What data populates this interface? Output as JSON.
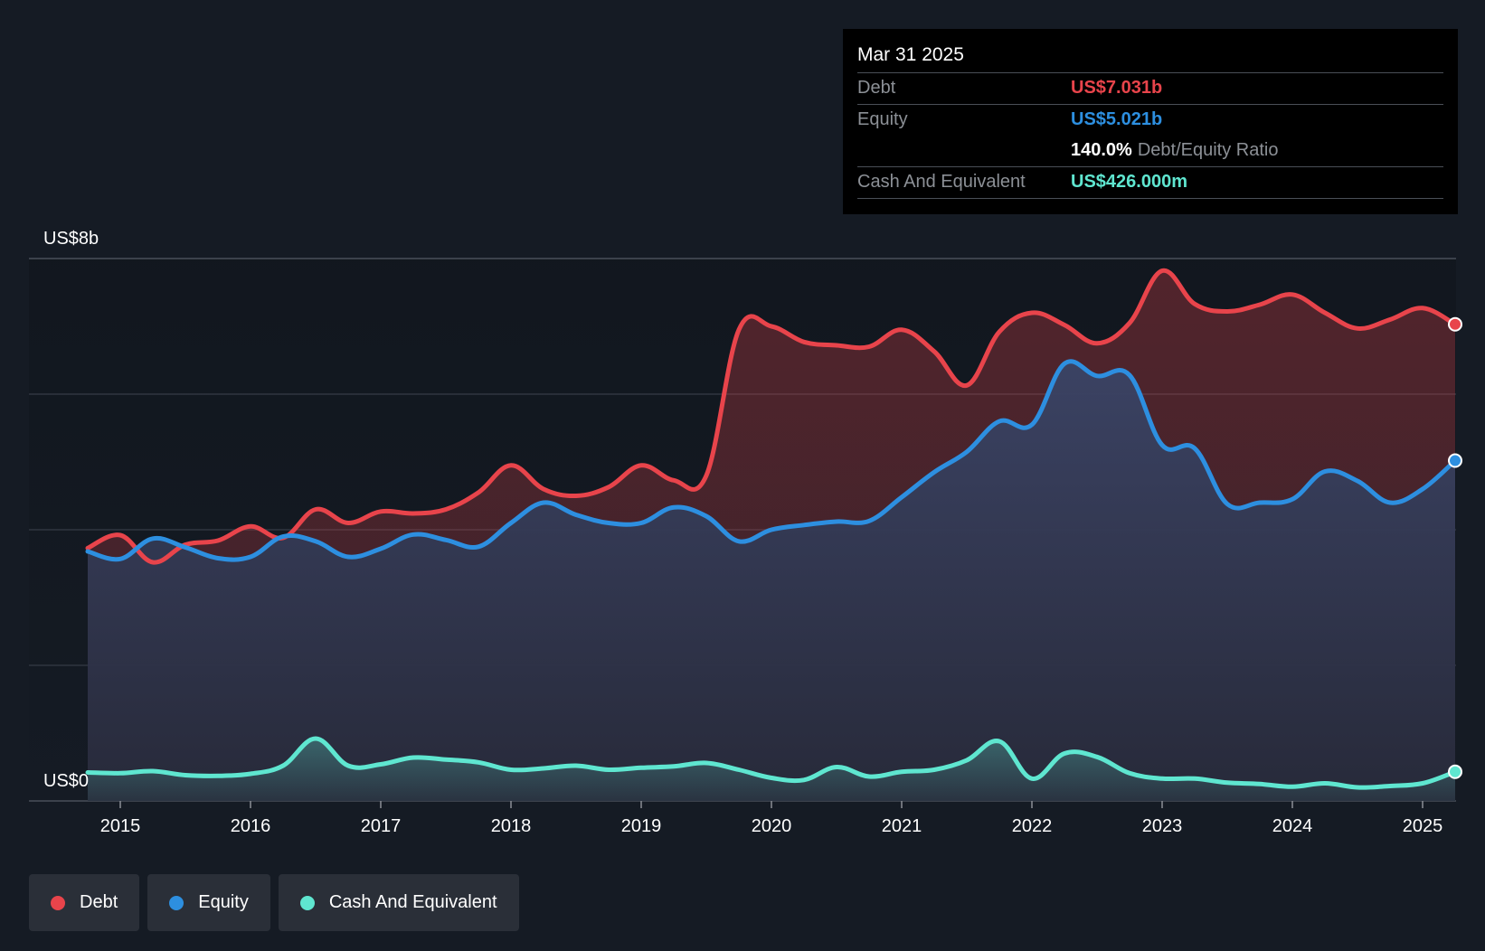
{
  "colors": {
    "debt": "#e8444b",
    "equity": "#2d8fe0",
    "cash": "#5fe6d0",
    "background": "#151b24"
  },
  "tooltip": {
    "date": "Mar 31 2025",
    "debt_label": "Debt",
    "debt_value": "US$7.031b",
    "equity_label": "Equity",
    "equity_value": "US$5.021b",
    "ratio_value": "140.0%",
    "ratio_label": "Debt/Equity Ratio",
    "cash_label": "Cash And Equivalent",
    "cash_value": "US$426.000m"
  },
  "legend": [
    {
      "label": "Debt",
      "color": "#e8444b"
    },
    {
      "label": "Equity",
      "color": "#2d8fe0"
    },
    {
      "label": "Cash And Equivalent",
      "color": "#5fe6d0"
    }
  ],
  "chart_data": {
    "type": "area",
    "title": "",
    "xlabel": "",
    "ylabel": "",
    "y_top_label": "US$8b",
    "y_bottom_label": "US$0",
    "ylim": [
      0,
      8
    ],
    "xlim": [
      2014.2,
      2025.25
    ],
    "x_ticks": [
      "2015",
      "2016",
      "2017",
      "2018",
      "2019",
      "2020",
      "2021",
      "2022",
      "2023",
      "2024",
      "2025"
    ],
    "grid": true,
    "series": [
      {
        "name": "Debt",
        "color": "#e8444b",
        "points": [
          [
            2014.75,
            3.73
          ],
          [
            2015.0,
            3.92
          ],
          [
            2015.25,
            3.52
          ],
          [
            2015.5,
            3.78
          ],
          [
            2015.75,
            3.84
          ],
          [
            2016.0,
            4.05
          ],
          [
            2016.25,
            3.88
          ],
          [
            2016.5,
            4.3
          ],
          [
            2016.75,
            4.1
          ],
          [
            2017.0,
            4.27
          ],
          [
            2017.25,
            4.24
          ],
          [
            2017.5,
            4.3
          ],
          [
            2017.75,
            4.55
          ],
          [
            2018.0,
            4.95
          ],
          [
            2018.25,
            4.6
          ],
          [
            2018.5,
            4.5
          ],
          [
            2018.75,
            4.63
          ],
          [
            2019.0,
            4.95
          ],
          [
            2019.25,
            4.73
          ],
          [
            2019.5,
            4.8
          ],
          [
            2019.75,
            6.95
          ],
          [
            2020.0,
            7.0
          ],
          [
            2020.25,
            6.77
          ],
          [
            2020.5,
            6.72
          ],
          [
            2020.75,
            6.7
          ],
          [
            2021.0,
            6.95
          ],
          [
            2021.25,
            6.63
          ],
          [
            2021.5,
            6.13
          ],
          [
            2021.75,
            6.92
          ],
          [
            2022.0,
            7.2
          ],
          [
            2022.25,
            7.02
          ],
          [
            2022.5,
            6.75
          ],
          [
            2022.75,
            7.05
          ],
          [
            2023.0,
            7.82
          ],
          [
            2023.25,
            7.33
          ],
          [
            2023.5,
            7.22
          ],
          [
            2023.75,
            7.32
          ],
          [
            2024.0,
            7.47
          ],
          [
            2024.25,
            7.2
          ],
          [
            2024.5,
            6.97
          ],
          [
            2024.75,
            7.1
          ],
          [
            2025.0,
            7.27
          ],
          [
            2025.25,
            7.03
          ]
        ]
      },
      {
        "name": "Equity",
        "color": "#2d8fe0",
        "points": [
          [
            2014.75,
            3.68
          ],
          [
            2015.0,
            3.57
          ],
          [
            2015.25,
            3.87
          ],
          [
            2015.5,
            3.74
          ],
          [
            2015.75,
            3.58
          ],
          [
            2016.0,
            3.6
          ],
          [
            2016.25,
            3.9
          ],
          [
            2016.5,
            3.83
          ],
          [
            2016.75,
            3.6
          ],
          [
            2017.0,
            3.72
          ],
          [
            2017.25,
            3.93
          ],
          [
            2017.5,
            3.85
          ],
          [
            2017.75,
            3.75
          ],
          [
            2018.0,
            4.1
          ],
          [
            2018.25,
            4.4
          ],
          [
            2018.5,
            4.22
          ],
          [
            2018.75,
            4.1
          ],
          [
            2019.0,
            4.1
          ],
          [
            2019.25,
            4.33
          ],
          [
            2019.5,
            4.2
          ],
          [
            2019.75,
            3.83
          ],
          [
            2020.0,
            4.0
          ],
          [
            2020.25,
            4.07
          ],
          [
            2020.5,
            4.12
          ],
          [
            2020.75,
            4.13
          ],
          [
            2021.0,
            4.48
          ],
          [
            2021.25,
            4.85
          ],
          [
            2021.5,
            5.15
          ],
          [
            2021.75,
            5.6
          ],
          [
            2022.0,
            5.55
          ],
          [
            2022.25,
            6.45
          ],
          [
            2022.5,
            6.27
          ],
          [
            2022.75,
            6.28
          ],
          [
            2023.0,
            5.25
          ],
          [
            2023.25,
            5.2
          ],
          [
            2023.5,
            4.38
          ],
          [
            2023.75,
            4.4
          ],
          [
            2024.0,
            4.45
          ],
          [
            2024.25,
            4.86
          ],
          [
            2024.5,
            4.72
          ],
          [
            2024.75,
            4.4
          ],
          [
            2025.0,
            4.6
          ],
          [
            2025.25,
            5.02
          ]
        ]
      },
      {
        "name": "Cash And Equivalent",
        "color": "#5fe6d0",
        "points": [
          [
            2014.75,
            0.42
          ],
          [
            2015.0,
            0.41
          ],
          [
            2015.25,
            0.44
          ],
          [
            2015.5,
            0.38
          ],
          [
            2015.75,
            0.37
          ],
          [
            2016.0,
            0.4
          ],
          [
            2016.25,
            0.52
          ],
          [
            2016.5,
            0.92
          ],
          [
            2016.75,
            0.52
          ],
          [
            2017.0,
            0.54
          ],
          [
            2017.25,
            0.64
          ],
          [
            2017.5,
            0.61
          ],
          [
            2017.75,
            0.57
          ],
          [
            2018.0,
            0.46
          ],
          [
            2018.25,
            0.48
          ],
          [
            2018.5,
            0.52
          ],
          [
            2018.75,
            0.46
          ],
          [
            2019.0,
            0.49
          ],
          [
            2019.25,
            0.51
          ],
          [
            2019.5,
            0.56
          ],
          [
            2019.75,
            0.46
          ],
          [
            2020.0,
            0.34
          ],
          [
            2020.25,
            0.31
          ],
          [
            2020.5,
            0.5
          ],
          [
            2020.75,
            0.36
          ],
          [
            2021.0,
            0.43
          ],
          [
            2021.25,
            0.46
          ],
          [
            2021.5,
            0.6
          ],
          [
            2021.75,
            0.88
          ],
          [
            2022.0,
            0.33
          ],
          [
            2022.25,
            0.7
          ],
          [
            2022.5,
            0.65
          ],
          [
            2022.75,
            0.41
          ],
          [
            2023.0,
            0.33
          ],
          [
            2023.25,
            0.33
          ],
          [
            2023.5,
            0.27
          ],
          [
            2023.75,
            0.25
          ],
          [
            2024.0,
            0.21
          ],
          [
            2024.25,
            0.26
          ],
          [
            2024.5,
            0.2
          ],
          [
            2024.75,
            0.22
          ],
          [
            2025.0,
            0.26
          ],
          [
            2025.25,
            0.43
          ]
        ]
      }
    ]
  }
}
